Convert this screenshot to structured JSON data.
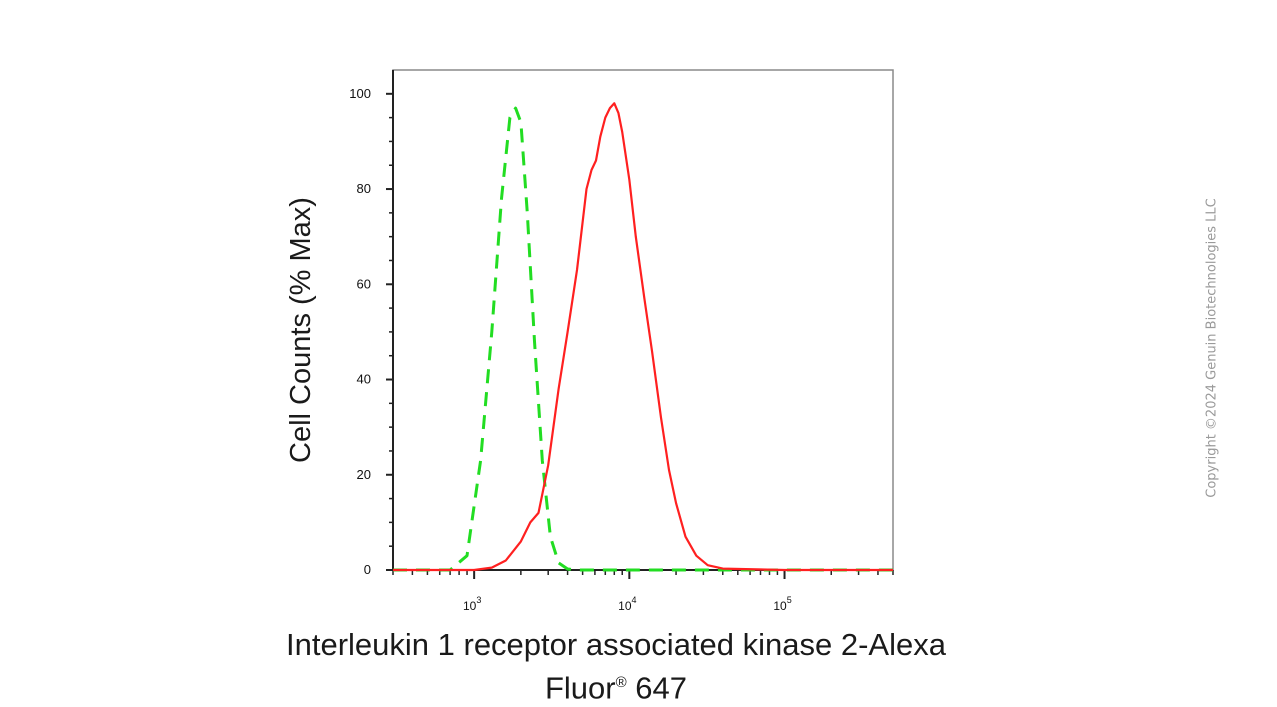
{
  "copyright": "Copyright ©2024 Genuin Biotechnologies LLC",
  "chart_data": {
    "type": "line",
    "title": "",
    "xlabel_line1": "Interleukin 1 receptor associated kinase 2-Alexa",
    "xlabel_line2_a": "Fluor",
    "xlabel_line2_reg": "®",
    "xlabel_line2_b": " 647",
    "ylabel": "Cell Counts (% Max)",
    "x_scale": "log",
    "xlim": [
      300,
      500000
    ],
    "ylim": [
      0,
      105
    ],
    "y_ticks": [
      0,
      20,
      40,
      60,
      80,
      100
    ],
    "y_tick_labels": [
      "0",
      "20",
      "40",
      "60",
      "80",
      "100"
    ],
    "x_ticks": [
      1000,
      10000,
      100000
    ],
    "x_tick_labels": [
      {
        "base": "10",
        "exp": "3"
      },
      {
        "base": "10",
        "exp": "4"
      },
      {
        "base": "10",
        "exp": "5"
      }
    ],
    "grid": false,
    "legend": "none",
    "series": [
      {
        "color": "#22dd22",
        "style": "dashed",
        "x": [
          300,
          700,
          900,
          1100,
          1300,
          1500,
          1700,
          1850,
          2000,
          2200,
          2450,
          2750,
          3100,
          3500,
          4000,
          4500,
          10000,
          100000,
          500000
        ],
        "y": [
          0,
          0,
          3,
          23,
          50,
          78,
          95,
          97,
          94,
          75,
          48,
          23,
          7,
          1.5,
          0.2,
          0,
          0,
          0,
          0
        ]
      },
      {
        "color": "#ff2020",
        "style": "solid",
        "x": [
          300,
          1000,
          1300,
          1600,
          2000,
          2300,
          2600,
          3000,
          3500,
          4000,
          4600,
          5300,
          5700,
          6100,
          6500,
          7000,
          7500,
          8000,
          8500,
          9000,
          10000,
          11000,
          12500,
          14000,
          16000,
          18000,
          20000,
          23000,
          27000,
          32000,
          40000,
          100000,
          500000
        ],
        "y": [
          0,
          0,
          0.5,
          2,
          6,
          10,
          12,
          22,
          38,
          50,
          63,
          80,
          84,
          86,
          91,
          95,
          97,
          98,
          96,
          92,
          82,
          70,
          57,
          46,
          32,
          21,
          14,
          7,
          3,
          1,
          0.3,
          0,
          0
        ]
      }
    ]
  }
}
